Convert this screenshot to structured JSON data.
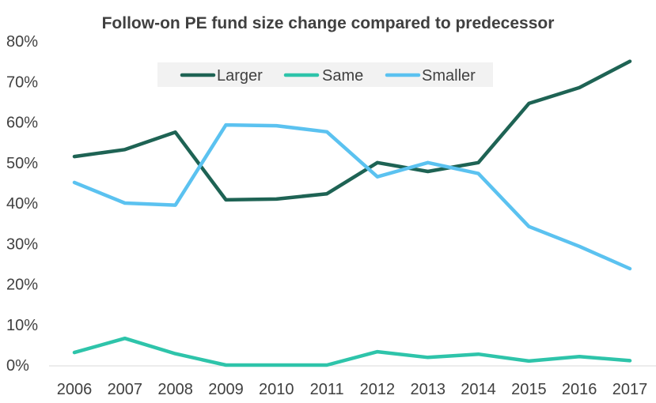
{
  "chart_data": {
    "type": "line",
    "title": "Follow-on PE fund size change compared to predecessor",
    "xlabel": "",
    "ylabel": "",
    "categories": [
      "2006",
      "2007",
      "2008",
      "2009",
      "2010",
      "2011",
      "2012",
      "2013",
      "2014",
      "2015",
      "2016",
      "2017"
    ],
    "ylim": [
      0,
      80
    ],
    "yticks": [
      "0%",
      "10%",
      "20%",
      "30%",
      "40%",
      "50%",
      "60%",
      "70%",
      "80%"
    ],
    "grid": false,
    "legend_placement": "top-center",
    "series": [
      {
        "name": "Larger",
        "color": "#1e6354",
        "values": [
          51.5,
          53.2,
          57.5,
          40.8,
          41.0,
          42.3,
          50.0,
          47.8,
          50.0,
          64.6,
          68.5,
          75.0
        ]
      },
      {
        "name": "Same",
        "color": "#2ec4aa",
        "values": [
          3.1,
          6.6,
          2.8,
          0.0,
          0.0,
          0.0,
          3.3,
          1.9,
          2.7,
          1.0,
          2.1,
          1.1
        ]
      },
      {
        "name": "Smaller",
        "color": "#5bc2f0",
        "values": [
          45.1,
          40.0,
          39.5,
          59.3,
          59.1,
          57.6,
          46.5,
          50.0,
          47.3,
          34.2,
          29.3,
          23.8
        ]
      }
    ]
  }
}
